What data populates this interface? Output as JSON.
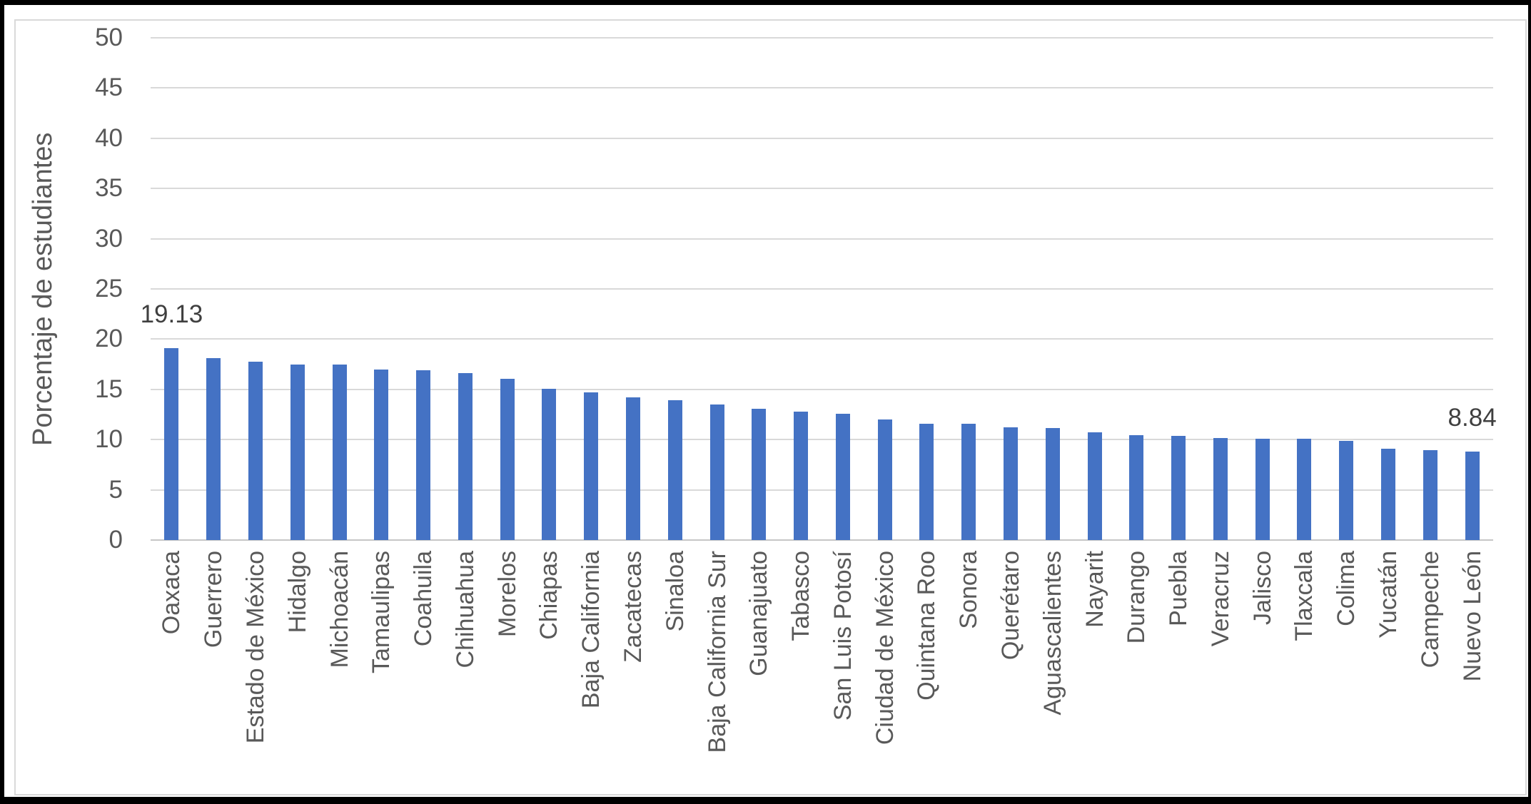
{
  "chart_data": {
    "type": "bar",
    "title": "",
    "xlabel": "",
    "ylabel": "Porcentaje de estudiantes",
    "ylim": [
      0,
      50
    ],
    "ytick_step": 5,
    "grid": true,
    "legend": false,
    "categories": [
      "Oaxaca",
      "Guerrero",
      "Estado de México",
      "Hidalgo",
      "Michoacán",
      "Tamaulipas",
      "Coahuila",
      "Chihuahua",
      "Morelos",
      "Chiapas",
      "Baja California",
      "Zacatecas",
      "Sinaloa",
      "Baja California Sur",
      "Guanajuato",
      "Tabasco",
      "San Luis Potosí",
      "Ciudad de México",
      "Quintana Roo",
      "Sonora",
      "Querétaro",
      "Aguascalientes",
      "Nayarit",
      "Durango",
      "Puebla",
      "Veracruz",
      "Jalisco",
      "Tlaxcala",
      "Colima",
      "Yucatán",
      "Campeche",
      "Nuevo León"
    ],
    "values": [
      19.13,
      18.1,
      17.75,
      17.5,
      17.45,
      16.95,
      16.9,
      16.6,
      16.05,
      15.05,
      14.7,
      14.2,
      13.9,
      13.5,
      13.1,
      12.75,
      12.6,
      12.0,
      11.6,
      11.55,
      11.2,
      11.15,
      10.7,
      10.45,
      10.35,
      10.15,
      10.1,
      10.05,
      9.85,
      9.1,
      8.95,
      8.84
    ],
    "shown_data_labels": [
      {
        "index": 0,
        "text": "19.13"
      },
      {
        "index": 31,
        "text": "8.84"
      }
    ]
  },
  "colors": {
    "bar": "#4472C4",
    "gridline": "#D9D9D9",
    "axis_line": "#C6C6C6",
    "tick_text": "#595959",
    "axis_title_text": "#595959",
    "category_text": "#595959",
    "data_label_text": "#3F3F3F",
    "chart_background": "#FFFFFF",
    "chart_border": "#D9D9D9",
    "outer_frame": "#000000"
  }
}
